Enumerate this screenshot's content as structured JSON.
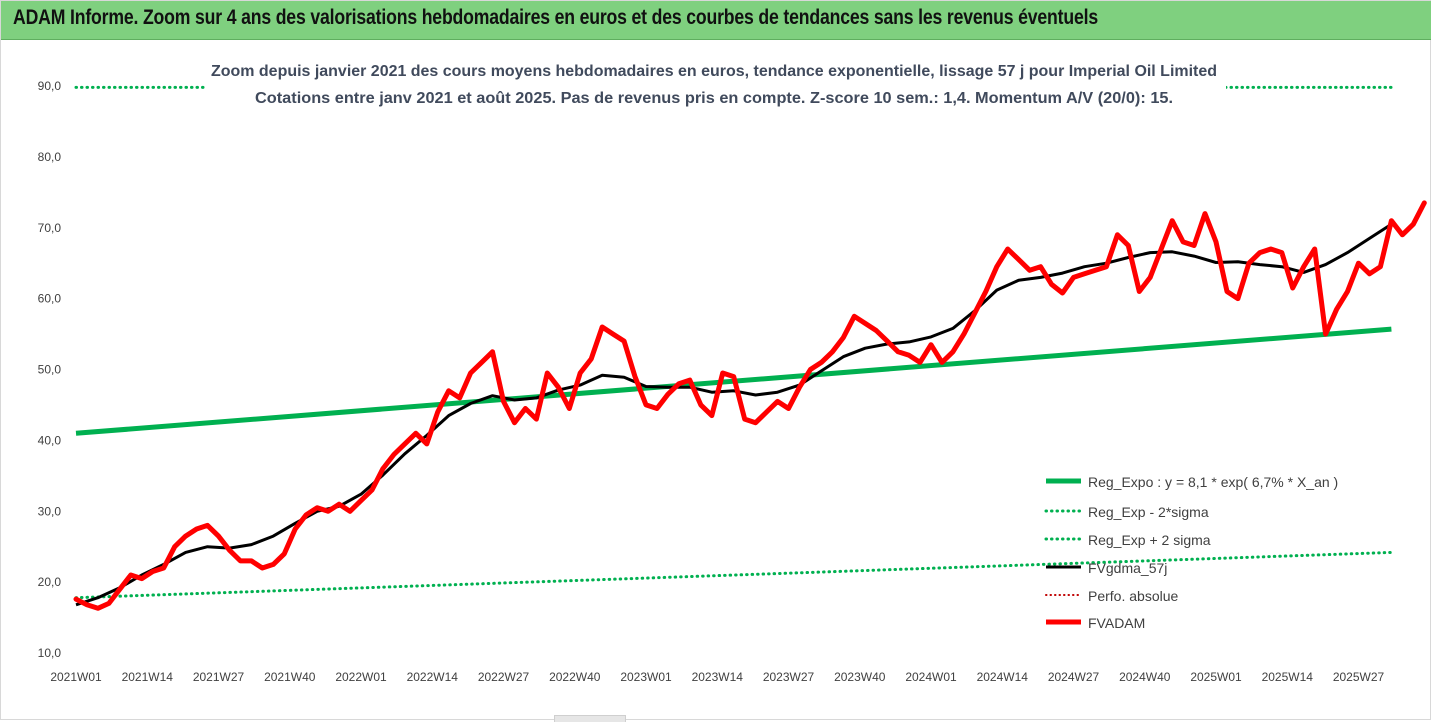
{
  "header": {
    "title": "ADAM Informe. Zoom sur 4 ans des valorisations hebdomadaires en euros et des courbes de tendances sans les revenus éventuels"
  },
  "colors": {
    "header_bg": "#7fd07f",
    "reg_expo": "#00b050",
    "trend": "#000000",
    "price": "#ff0000",
    "perf": "#c00000"
  },
  "chart_data": {
    "type": "line",
    "title_line1": "Zoom depuis janvier 2021 des cours moyens hebdomadaires en euros, tendance exponentielle, lissage 57 j pour Imperial Oil Limited",
    "title_line2": "Cotations entre janv 2021 et août 2025. Pas de revenus pris en compte. Z-score 10 sem.: 1,4. Momentum A/V (20/0): 15.",
    "x_tick_labels": [
      "2021W01",
      "2021W14",
      "2021W27",
      "2021W40",
      "2022W01",
      "2022W14",
      "2022W27",
      "2022W40",
      "2023W01",
      "2023W14",
      "2023W27",
      "2023W40",
      "2024W01",
      "2024W14",
      "2024W27",
      "2024W40",
      "2025W01",
      "2025W14",
      "2025W27"
    ],
    "x_tick_index": [
      0,
      13,
      26,
      39,
      52,
      65,
      78,
      91,
      104,
      117,
      130,
      143,
      156,
      169,
      182,
      195,
      208,
      221,
      234
    ],
    "ylim": [
      10,
      90
    ],
    "y_ticks": [
      "10,0",
      "20,0",
      "30,0",
      "40,0",
      "50,0",
      "60,0",
      "70,0",
      "80,0",
      "90,0"
    ],
    "grid": false,
    "legend_position": "right",
    "legend": [
      "Reg_Expo : y = 8,1 * exp( 6,7% *  X_an )",
      "Reg_Exp - 2*sigma",
      "Reg_Exp + 2 sigma",
      "FVgdma_57j",
      "Perfo. absolue",
      "FVADAM"
    ],
    "series": [
      {
        "name": "Reg_Expo : y = 8,1 * exp( 6,7% *  X_an )",
        "style": "solid-thick",
        "points": [
          [
            0,
            41.0
          ],
          [
            240,
            55.7
          ]
        ]
      },
      {
        "name": "Reg_Exp - 2*sigma",
        "style": "dotted",
        "points": [
          [
            0,
            17.8
          ],
          [
            240,
            24.2
          ]
        ]
      },
      {
        "name": "Reg_Exp + 2 sigma",
        "style": "dotted",
        "points": [
          [
            0,
            89.8
          ],
          [
            240,
            89.8
          ]
        ]
      },
      {
        "name": "FVgdma_57j",
        "style": "solid-black",
        "points": [
          [
            0,
            16.8
          ],
          [
            4,
            17.8
          ],
          [
            8,
            19.2
          ],
          [
            12,
            21.0
          ],
          [
            16,
            22.5
          ],
          [
            20,
            24.2
          ],
          [
            24,
            25.0
          ],
          [
            28,
            24.8
          ],
          [
            32,
            25.3
          ],
          [
            36,
            26.5
          ],
          [
            40,
            28.3
          ],
          [
            44,
            30.0
          ],
          [
            48,
            30.7
          ],
          [
            52,
            32.4
          ],
          [
            56,
            35.1
          ],
          [
            60,
            38.1
          ],
          [
            64,
            40.7
          ],
          [
            68,
            43.5
          ],
          [
            72,
            45.2
          ],
          [
            76,
            46.3
          ],
          [
            80,
            45.7
          ],
          [
            84,
            46.0
          ],
          [
            88,
            47.1
          ],
          [
            92,
            47.8
          ],
          [
            96,
            49.2
          ],
          [
            100,
            48.9
          ],
          [
            104,
            47.6
          ],
          [
            108,
            47.5
          ],
          [
            112,
            47.5
          ],
          [
            116,
            46.8
          ],
          [
            120,
            47.0
          ],
          [
            124,
            46.4
          ],
          [
            128,
            46.8
          ],
          [
            132,
            47.8
          ],
          [
            136,
            49.8
          ],
          [
            140,
            51.8
          ],
          [
            144,
            53.0
          ],
          [
            148,
            53.6
          ],
          [
            152,
            53.9
          ],
          [
            156,
            54.6
          ],
          [
            160,
            55.8
          ],
          [
            164,
            58.3
          ],
          [
            168,
            61.2
          ],
          [
            172,
            62.6
          ],
          [
            176,
            63.0
          ],
          [
            180,
            63.6
          ],
          [
            184,
            64.5
          ],
          [
            188,
            65.0
          ],
          [
            192,
            65.8
          ],
          [
            196,
            66.5
          ],
          [
            200,
            66.6
          ],
          [
            204,
            66.0
          ],
          [
            208,
            65.1
          ],
          [
            212,
            65.2
          ],
          [
            216,
            64.8
          ],
          [
            220,
            64.5
          ],
          [
            224,
            63.7
          ],
          [
            228,
            64.8
          ],
          [
            232,
            66.5
          ],
          [
            236,
            68.5
          ],
          [
            240,
            70.5
          ]
        ]
      },
      {
        "name": "Perfo. absolue",
        "style": "dotted-red",
        "points": []
      },
      {
        "name": "FVADAM",
        "style": "solid-red-thick",
        "points": [
          [
            0,
            17.6
          ],
          [
            2,
            16.8
          ],
          [
            4,
            16.3
          ],
          [
            6,
            17.0
          ],
          [
            8,
            19.0
          ],
          [
            10,
            21.0
          ],
          [
            12,
            20.5
          ],
          [
            14,
            21.5
          ],
          [
            16,
            22.0
          ],
          [
            18,
            25.0
          ],
          [
            20,
            26.5
          ],
          [
            22,
            27.5
          ],
          [
            24,
            28.0
          ],
          [
            26,
            26.5
          ],
          [
            28,
            24.5
          ],
          [
            30,
            23.0
          ],
          [
            32,
            23.0
          ],
          [
            34,
            22.0
          ],
          [
            36,
            22.5
          ],
          [
            38,
            24.0
          ],
          [
            40,
            27.5
          ],
          [
            42,
            29.5
          ],
          [
            44,
            30.5
          ],
          [
            46,
            30.0
          ],
          [
            48,
            31.0
          ],
          [
            50,
            30.0
          ],
          [
            52,
            31.5
          ],
          [
            54,
            33.0
          ],
          [
            56,
            36.0
          ],
          [
            58,
            38.0
          ],
          [
            60,
            39.5
          ],
          [
            62,
            41.0
          ],
          [
            64,
            39.5
          ],
          [
            66,
            44.0
          ],
          [
            68,
            47.0
          ],
          [
            70,
            46.0
          ],
          [
            72,
            49.5
          ],
          [
            74,
            51.0
          ],
          [
            76,
            52.5
          ],
          [
            78,
            45.5
          ],
          [
            80,
            42.5
          ],
          [
            82,
            44.5
          ],
          [
            84,
            43.0
          ],
          [
            86,
            49.5
          ],
          [
            88,
            47.5
          ],
          [
            90,
            44.5
          ],
          [
            92,
            49.5
          ],
          [
            94,
            51.5
          ],
          [
            96,
            56.0
          ],
          [
            98,
            55.0
          ],
          [
            100,
            54.0
          ],
          [
            102,
            49.0
          ],
          [
            104,
            45.0
          ],
          [
            106,
            44.5
          ],
          [
            108,
            46.5
          ],
          [
            110,
            48.0
          ],
          [
            112,
            48.5
          ],
          [
            114,
            45.0
          ],
          [
            116,
            43.5
          ],
          [
            118,
            49.5
          ],
          [
            120,
            49.0
          ],
          [
            122,
            43.0
          ],
          [
            124,
            42.5
          ],
          [
            126,
            44.0
          ],
          [
            128,
            45.5
          ],
          [
            130,
            44.5
          ],
          [
            132,
            47.5
          ],
          [
            134,
            50.0
          ],
          [
            136,
            51.0
          ],
          [
            138,
            52.5
          ],
          [
            140,
            54.5
          ],
          [
            142,
            57.5
          ],
          [
            144,
            56.5
          ],
          [
            146,
            55.5
          ],
          [
            148,
            54.0
          ],
          [
            150,
            52.5
          ],
          [
            152,
            52.0
          ],
          [
            154,
            51.0
          ],
          [
            156,
            53.5
          ],
          [
            158,
            51.0
          ],
          [
            160,
            52.5
          ],
          [
            162,
            55.0
          ],
          [
            164,
            58.0
          ],
          [
            166,
            61.0
          ],
          [
            168,
            64.5
          ],
          [
            170,
            67.0
          ],
          [
            172,
            65.5
          ],
          [
            174,
            64.0
          ],
          [
            176,
            64.5
          ],
          [
            178,
            62.0
          ],
          [
            180,
            60.8
          ],
          [
            182,
            63.0
          ],
          [
            184,
            63.5
          ],
          [
            186,
            64.0
          ],
          [
            188,
            64.5
          ],
          [
            190,
            69.0
          ],
          [
            192,
            67.5
          ],
          [
            194,
            61.0
          ],
          [
            196,
            63.0
          ],
          [
            198,
            67.0
          ],
          [
            200,
            71.0
          ],
          [
            202,
            68.0
          ],
          [
            204,
            67.5
          ],
          [
            206,
            72.0
          ],
          [
            208,
            68.0
          ],
          [
            210,
            61.0
          ],
          [
            212,
            60.0
          ],
          [
            214,
            65.0
          ],
          [
            216,
            66.5
          ],
          [
            218,
            67.0
          ],
          [
            220,
            66.5
          ],
          [
            222,
            61.5
          ],
          [
            224,
            64.5
          ],
          [
            226,
            67.0
          ],
          [
            228,
            55.0
          ],
          [
            230,
            58.5
          ],
          [
            232,
            61.0
          ],
          [
            234,
            65.0
          ],
          [
            236,
            63.5
          ],
          [
            238,
            64.5
          ],
          [
            240,
            71.0
          ],
          [
            242,
            69.0
          ],
          [
            244,
            70.5
          ],
          [
            246,
            73.5
          ]
        ]
      }
    ]
  }
}
